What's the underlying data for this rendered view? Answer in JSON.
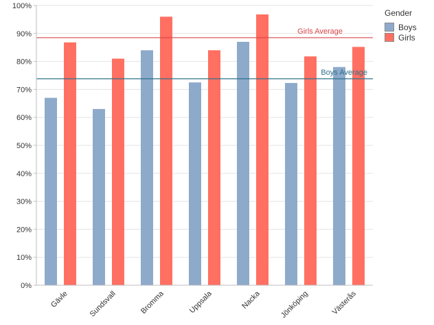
{
  "chart_data": {
    "type": "bar",
    "categories": [
      "Gävle",
      "Sundsvall",
      "Bromma",
      "Uppsala",
      "Nacka",
      "Jönköping",
      "Västerås"
    ],
    "series": [
      {
        "name": "Boys",
        "values": [
          67,
          63,
          84,
          72.5,
          87,
          72.3,
          78
        ],
        "color": "#8eaacb"
      },
      {
        "name": "Girls",
        "values": [
          86.8,
          81,
          96,
          84,
          96.8,
          81.8,
          85.2
        ],
        "color": "#ff7062"
      }
    ],
    "ylim": [
      0,
      100
    ],
    "ytick_labels": [
      "0%",
      "10%",
      "20%",
      "30%",
      "40%",
      "50%",
      "60%",
      "70%",
      "80%",
      "90%",
      "100%"
    ],
    "grid": true,
    "reference_lines": [
      {
        "label": "Girls Average",
        "value": 88.5,
        "color": "#d9454a"
      },
      {
        "label": "Boys Average",
        "value": 73.8,
        "color": "#2c7089"
      }
    ],
    "legend": {
      "title": "Gender",
      "position": "top-right",
      "items": [
        {
          "label": "Boys",
          "color": "#8eaacb"
        },
        {
          "label": "Girls",
          "color": "#ff7062"
        }
      ]
    }
  }
}
